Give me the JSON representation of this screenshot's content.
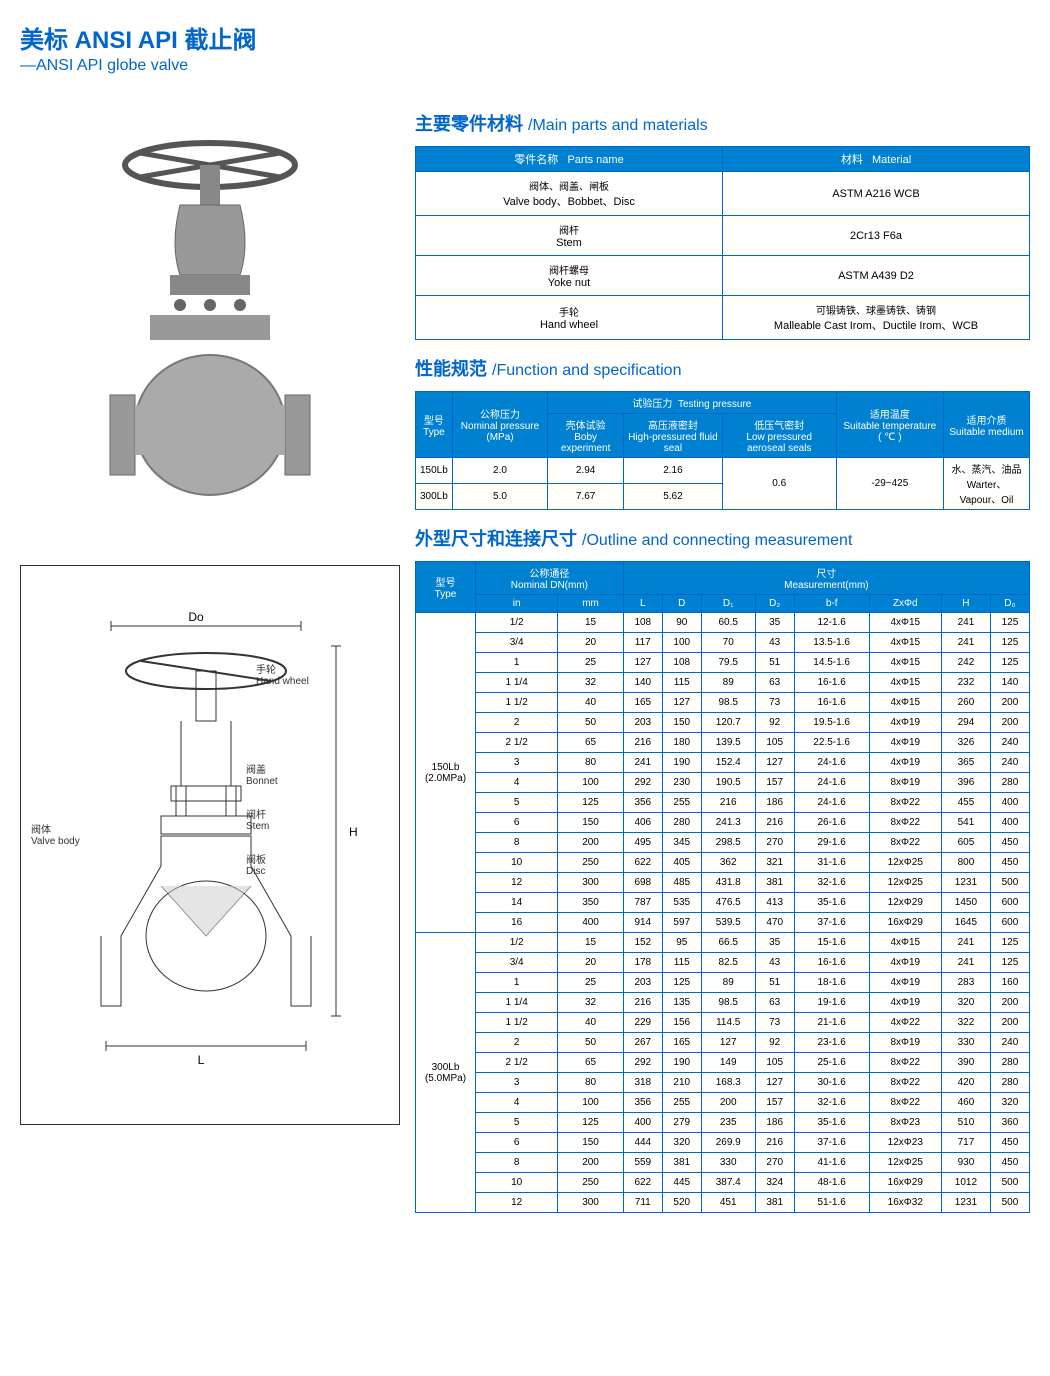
{
  "header": {
    "title_cn": "美标 ANSI API 截止阀",
    "title_en": "—ANSI API globe valve"
  },
  "section1": {
    "title_cn": "主要零件材料",
    "title_en": "/Main parts and materials",
    "headers": {
      "parts_cn": "零件名称",
      "parts_en": "Parts name",
      "mat_cn": "材料",
      "mat_en": "Material"
    },
    "rows": [
      {
        "p_cn": "阀体、阀盖、闸板",
        "p_en": "Valve body、Bobbet、Disc",
        "m": "ASTM  A216  WCB"
      },
      {
        "p_cn": "阀杆",
        "p_en": "Stem",
        "m": "2Cr13  F6a"
      },
      {
        "p_cn": "阀杆螺母",
        "p_en": "Yoke nut",
        "m": "ASTM  A439  D2"
      },
      {
        "p_cn": "手轮",
        "p_en": "Hand wheel",
        "m_cn": "可锻铸铁、球墨铸铁、铸钢",
        "m_en": "Malleable Cast Irom、Ductile Irom、WCB"
      }
    ]
  },
  "section2": {
    "title_cn": "性能规范",
    "title_en": "/Function and specification",
    "h": {
      "type_cn": "型号",
      "type_en": "Type",
      "nom_cn": "公称压力",
      "nom_en": "Nominal pressure (MPa)",
      "test_cn": "试验压力",
      "test_en": "Testing pressure",
      "body_cn": "壳体试验",
      "body_en": "Boby experiment",
      "hp_cn": "高压液密封",
      "hp_en": "High-pressured fluid seal",
      "lp_cn": "低压气密封",
      "lp_en": "Low pressured aeroseal seals",
      "temp_cn": "适用温度",
      "temp_en": "Suitable temperature (  ℃  )",
      "med_cn": "适用介质",
      "med_en": "Suitable medium"
    },
    "rows": [
      {
        "t": "150Lb",
        "p": "2.0",
        "b": "2.94",
        "hp": "2.16"
      },
      {
        "t": "300Lb",
        "p": "5.0",
        "b": "7.67",
        "hp": "5.62"
      }
    ],
    "lp": "0.6",
    "temp": "-29~425",
    "med_cn": "水、蒸汽、油品",
    "med_en": "Warter、Vapour、Oil"
  },
  "section3": {
    "title_cn": "外型尺寸和连接尺寸",
    "title_en": "/Outline and connecting measurement",
    "h": {
      "type_cn": "型号",
      "type_en": "Type",
      "dn_cn": "公称通径",
      "dn_en": "Nominal DN(mm)",
      "meas_cn": "尺寸",
      "meas_en": "Measurement(mm)",
      "in": "in",
      "mm": "mm",
      "L": "L",
      "D": "D",
      "D1": "D₁",
      "D2": "D₂",
      "bf": "b-f",
      "Zd": "ZxΦd",
      "H": "H",
      "D0": "D₀"
    },
    "g1": {
      "label": "150Lb",
      "sub": "(2.0MPa)"
    },
    "g2": {
      "label": "300Lb",
      "sub": "(5.0MPa)"
    },
    "data150": [
      [
        "1/2",
        "15",
        "108",
        "90",
        "60.5",
        "35",
        "12-1.6",
        "4xΦ15",
        "241",
        "125"
      ],
      [
        "3/4",
        "20",
        "117",
        "100",
        "70",
        "43",
        "13.5-1.6",
        "4xΦ15",
        "241",
        "125"
      ],
      [
        "1",
        "25",
        "127",
        "108",
        "79.5",
        "51",
        "14.5-1.6",
        "4xΦ15",
        "242",
        "125"
      ],
      [
        "1 1/4",
        "32",
        "140",
        "115",
        "89",
        "63",
        "16-1.6",
        "4xΦ15",
        "232",
        "140"
      ],
      [
        "1 1/2",
        "40",
        "165",
        "127",
        "98.5",
        "73",
        "16-1.6",
        "4xΦ15",
        "260",
        "200"
      ],
      [
        "2",
        "50",
        "203",
        "150",
        "120.7",
        "92",
        "19.5-1.6",
        "4xΦ19",
        "294",
        "200"
      ],
      [
        "2 1/2",
        "65",
        "216",
        "180",
        "139.5",
        "105",
        "22.5-1.6",
        "4xΦ19",
        "326",
        "240"
      ],
      [
        "3",
        "80",
        "241",
        "190",
        "152.4",
        "127",
        "24-1.6",
        "4xΦ19",
        "365",
        "240"
      ],
      [
        "4",
        "100",
        "292",
        "230",
        "190.5",
        "157",
        "24-1.6",
        "8xΦ19",
        "396",
        "280"
      ],
      [
        "5",
        "125",
        "356",
        "255",
        "216",
        "186",
        "24-1.6",
        "8xΦ22",
        "455",
        "400"
      ],
      [
        "6",
        "150",
        "406",
        "280",
        "241.3",
        "216",
        "26-1.6",
        "8xΦ22",
        "541",
        "400"
      ],
      [
        "8",
        "200",
        "495",
        "345",
        "298.5",
        "270",
        "29-1.6",
        "8xΦ22",
        "605",
        "450"
      ],
      [
        "10",
        "250",
        "622",
        "405",
        "362",
        "321",
        "31-1.6",
        "12xΦ25",
        "800",
        "450"
      ],
      [
        "12",
        "300",
        "698",
        "485",
        "431.8",
        "381",
        "32-1.6",
        "12xΦ25",
        "1231",
        "500"
      ],
      [
        "14",
        "350",
        "787",
        "535",
        "476.5",
        "413",
        "35-1.6",
        "12xΦ29",
        "1450",
        "600"
      ],
      [
        "16",
        "400",
        "914",
        "597",
        "539.5",
        "470",
        "37-1.6",
        "16xΦ29",
        "1645",
        "600"
      ]
    ],
    "data300": [
      [
        "1/2",
        "15",
        "152",
        "95",
        "66.5",
        "35",
        "15-1.6",
        "4xΦ15",
        "241",
        "125"
      ],
      [
        "3/4",
        "20",
        "178",
        "115",
        "82.5",
        "43",
        "16-1.6",
        "4xΦ19",
        "241",
        "125"
      ],
      [
        "1",
        "25",
        "203",
        "125",
        "89",
        "51",
        "18-1.6",
        "4xΦ19",
        "283",
        "160"
      ],
      [
        "1 1/4",
        "32",
        "216",
        "135",
        "98.5",
        "63",
        "19-1.6",
        "4xΦ19",
        "320",
        "200"
      ],
      [
        "1 1/2",
        "40",
        "229",
        "156",
        "114.5",
        "73",
        "21-1.6",
        "4xΦ22",
        "322",
        "200"
      ],
      [
        "2",
        "50",
        "267",
        "165",
        "127",
        "92",
        "23-1.6",
        "8xΦ19",
        "330",
        "240"
      ],
      [
        "2 1/2",
        "65",
        "292",
        "190",
        "149",
        "105",
        "25-1.6",
        "8xΦ22",
        "390",
        "280"
      ],
      [
        "3",
        "80",
        "318",
        "210",
        "168.3",
        "127",
        "30-1.6",
        "8xΦ22",
        "420",
        "280"
      ],
      [
        "4",
        "100",
        "356",
        "255",
        "200",
        "157",
        "32-1.6",
        "8xΦ22",
        "460",
        "320"
      ],
      [
        "5",
        "125",
        "400",
        "279",
        "235",
        "186",
        "35-1.6",
        "8xΦ23",
        "510",
        "360"
      ],
      [
        "6",
        "150",
        "444",
        "320",
        "269.9",
        "216",
        "37-1.6",
        "12xΦ23",
        "717",
        "450"
      ],
      [
        "8",
        "200",
        "559",
        "381",
        "330",
        "270",
        "41-1.6",
        "12xΦ25",
        "930",
        "450"
      ],
      [
        "10",
        "250",
        "622",
        "445",
        "387.4",
        "324",
        "48-1.6",
        "16xΦ29",
        "1012",
        "500"
      ],
      [
        "12",
        "300",
        "711",
        "520",
        "451",
        "381",
        "51-1.6",
        "16xΦ32",
        "1231",
        "500"
      ]
    ]
  },
  "diagram": {
    "labels": {
      "do": "Do",
      "hw_cn": "手轮",
      "hw_en": "Hand wheel",
      "bn_cn": "阀盖",
      "bn_en": "Bonnet",
      "vb_cn": "阀体",
      "vb_en": "Valve body",
      "st_cn": "阀杆",
      "st_en": "Stem",
      "dc_cn": "阀板",
      "dc_en": "Disc",
      "H": "H",
      "L": "L"
    }
  }
}
